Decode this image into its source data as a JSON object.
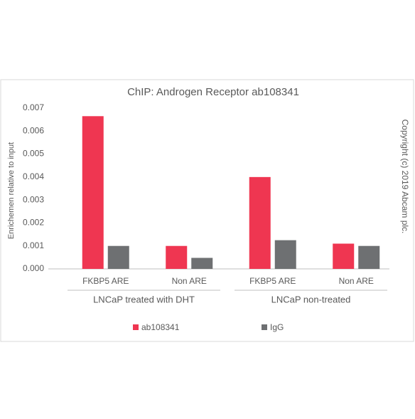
{
  "chart_data": {
    "type": "bar",
    "title": "ChIP: Androgen Receptor ab108341",
    "y_label": "Enrichemen relative to input",
    "annotation": "Copyright (c) 2019 Abcam plc.",
    "categories": [
      "FKBP5 ARE",
      "Non ARE",
      "FKBP5 ARE",
      "Non ARE"
    ],
    "groups": [
      "LNCaP treated with DHT",
      "LNCaP non-treated"
    ],
    "series": [
      {
        "name": "ab108341",
        "color": "#ef3651",
        "values": [
          0.00665,
          0.001,
          0.004,
          0.0011
        ]
      },
      {
        "name": "IgG",
        "color": "#6e7072",
        "values": [
          0.001,
          0.00048,
          0.00125,
          0.001
        ]
      }
    ],
    "ylim": [
      0,
      0.007
    ],
    "yticks": [
      {
        "value": 0,
        "label": "0.000"
      },
      {
        "value": 0.001,
        "label": "0.001"
      },
      {
        "value": 0.002,
        "label": "0.002"
      },
      {
        "value": 0.003,
        "label": "0.003"
      },
      {
        "value": 0.004,
        "label": "0.004"
      },
      {
        "value": 0.005,
        "label": "0.005"
      },
      {
        "value": 0.006,
        "label": "0.006"
      },
      {
        "value": 0.007,
        "label": "0.007"
      }
    ],
    "legend": "bottom"
  }
}
